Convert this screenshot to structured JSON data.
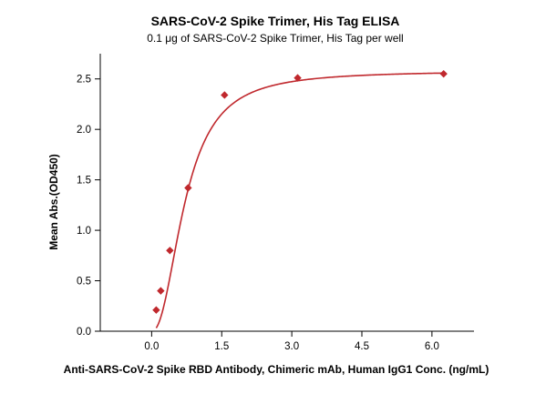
{
  "chart_data": {
    "type": "scatter",
    "title": "SARS-CoV-2 Spike Trimer, His Tag ELISA",
    "subtitle": "0.1 μg of SARS-CoV-2 Spike Trimer, His Tag per well",
    "xlabel": "Anti-SARS-CoV-2 Spike RBD Antibody, Chimeric mAb, Human IgG1 Conc. (ng/mL)",
    "ylabel": "Mean Abs.(OD450)",
    "xlim": [
      -1.1,
      6.9
    ],
    "ylim": [
      0,
      2.75
    ],
    "xticks": [
      0.0,
      1.5,
      3.0,
      4.5,
      6.0
    ],
    "xtick_labels": [
      "0.0",
      "1.5",
      "3.0",
      "4.5",
      "6.0"
    ],
    "yticks": [
      0.0,
      0.5,
      1.0,
      1.5,
      2.0,
      2.5
    ],
    "ytick_labels": [
      "0.0",
      "0.5",
      "1.0",
      "1.5",
      "2.0",
      "2.5"
    ],
    "grid": false,
    "legend": "none",
    "series": [
      {
        "x": [
          0.098,
          0.195,
          0.39,
          0.78,
          1.56,
          3.125,
          6.25
        ],
        "y": [
          0.21,
          0.4,
          0.8,
          1.42,
          2.34,
          2.51,
          2.55
        ],
        "marker": "diamond",
        "fit": "4PL"
      }
    ],
    "colors": {
      "series": "#c0282d",
      "axis": "#000000"
    }
  }
}
